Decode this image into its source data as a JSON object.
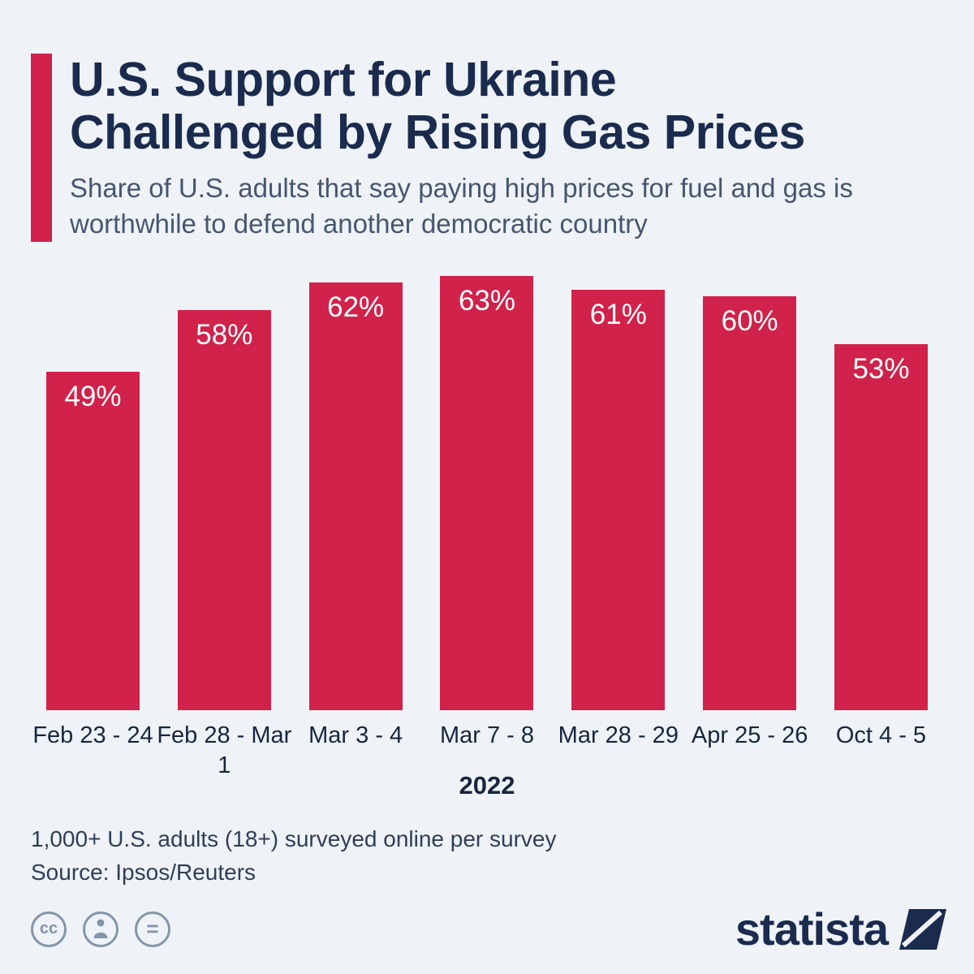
{
  "header": {
    "title_line1": "U.S. Support for Ukraine",
    "title_line2": "Challenged by Rising Gas Prices",
    "subtitle": "Share of U.S. adults that say paying high prices for fuel and gas is worthwhile to defend another democratic country"
  },
  "chart_data": {
    "type": "bar",
    "categories": [
      "Feb 23 - 24",
      "Feb 28 - Mar 1",
      "Mar 3 - 4",
      "Mar 7 - 8",
      "Mar 28 - 29",
      "Apr 25 - 26",
      "Oct 4 - 5"
    ],
    "values": [
      49,
      58,
      62,
      63,
      61,
      60,
      53
    ],
    "labels": [
      "49%",
      "58%",
      "62%",
      "63%",
      "61%",
      "60%",
      "53%"
    ],
    "xlabel": "2022",
    "ylabel": "",
    "ylim": [
      0,
      63
    ],
    "grid": false,
    "legend": "none",
    "bar_color": "#d0224a",
    "value_label_color": "#ffffff",
    "value_label_position": "inside-top"
  },
  "footer": {
    "note": "1,000+ U.S. adults (18+) surveyed online per survey",
    "source": "Source: Ipsos/Reuters"
  },
  "branding": {
    "logo_text": "statista",
    "logo_color": "#1a2b4e"
  },
  "license_icons": [
    {
      "name": "cc-icon",
      "glyph": "cc"
    },
    {
      "name": "attribution-person-icon",
      "glyph": "person"
    },
    {
      "name": "equals-icon",
      "glyph": "="
    }
  ],
  "colors": {
    "background": "#eff3f8",
    "bar": "#d0224a",
    "accent_bar": "#d0224a",
    "title": "#1a2b4e",
    "subtitle": "#46566f"
  }
}
